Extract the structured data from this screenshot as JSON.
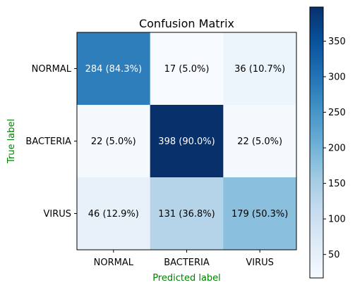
{
  "chart_data": {
    "type": "heatmap",
    "title": "Confusion Matrix",
    "xlabel": "Predicted label",
    "ylabel": "True label",
    "label_color": "#008000",
    "x_categories": [
      "NORMAL",
      "BACTERIA",
      "VIRUS"
    ],
    "y_categories": [
      "NORMAL",
      "BACTERIA",
      "VIRUS"
    ],
    "values": [
      [
        284,
        17,
        36
      ],
      [
        22,
        398,
        22
      ],
      [
        46,
        131,
        179
      ]
    ],
    "cell_labels": [
      [
        "284 (84.3%)",
        "17 (5.0%)",
        "36 (10.7%)"
      ],
      [
        "22 (5.0%)",
        "398 (90.0%)",
        "22 (5.0%)"
      ],
      [
        "46 (12.9%)",
        "131 (36.8%)",
        "179 (50.3%)"
      ]
    ],
    "colormap": "Blues",
    "color_range": [
      17,
      398
    ],
    "colorbar": {
      "ticks": [
        50,
        100,
        150,
        200,
        250,
        300,
        350
      ],
      "labels": [
        "50",
        "100",
        "150",
        "200",
        "250",
        "300",
        "350"
      ]
    },
    "grid": false
  }
}
